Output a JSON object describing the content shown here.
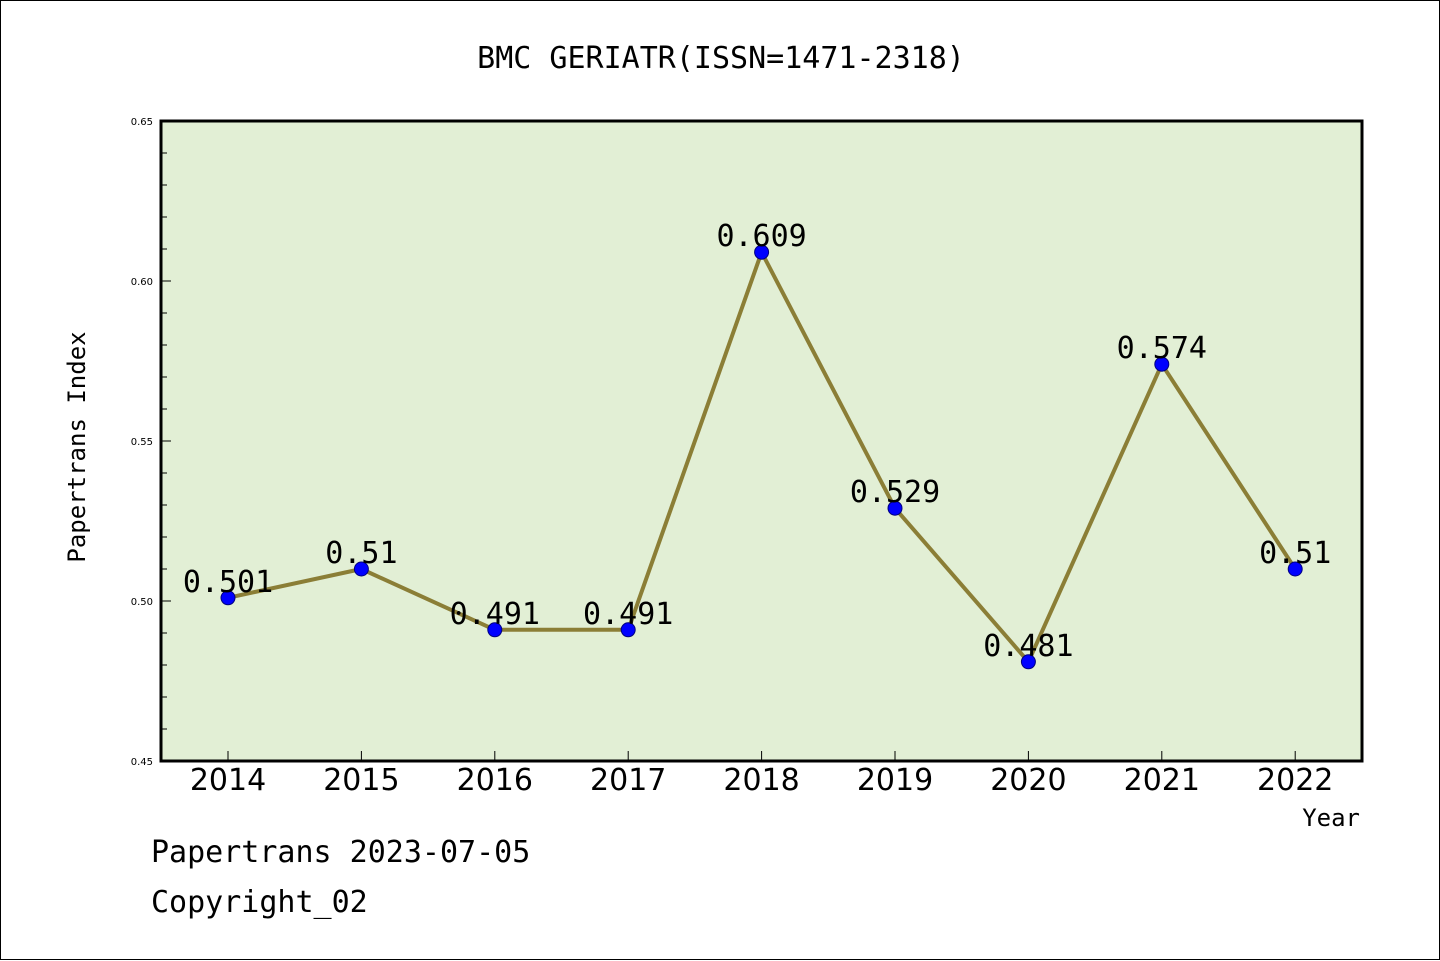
{
  "chart_data": {
    "type": "line",
    "title": "BMC GERIATR(ISSN=1471-2318)",
    "xlabel": "Year",
    "ylabel": "Papertrans Index",
    "categories": [
      "2014",
      "2015",
      "2016",
      "2017",
      "2018",
      "2019",
      "2020",
      "2021",
      "2022"
    ],
    "series": [
      {
        "values": [
          0.501,
          0.51,
          0.491,
          0.491,
          0.609,
          0.529,
          0.481,
          0.574,
          0.51
        ],
        "data_labels": [
          "0.501",
          "0.51",
          "0.491",
          "0.491",
          "0.609",
          "0.529",
          "0.481",
          "0.574",
          "0.51"
        ]
      }
    ],
    "ylim": [
      0.45,
      0.65
    ],
    "yticks": [
      0.45,
      0.5,
      0.55,
      0.6,
      0.65
    ],
    "ytick_labels": [
      "0.45",
      "0.50",
      "0.55",
      "0.60",
      "0.65"
    ],
    "grid": false,
    "legend": "none",
    "colors": {
      "plot_background": "#e2efd5",
      "line": "#8b7e36",
      "marker_fill": "#0000ff",
      "marker_edge": "#000080",
      "axes": "#000000"
    }
  },
  "footer": {
    "date_text": "Papertrans 2023-07-05",
    "copyright_text": "Copyright_02"
  }
}
